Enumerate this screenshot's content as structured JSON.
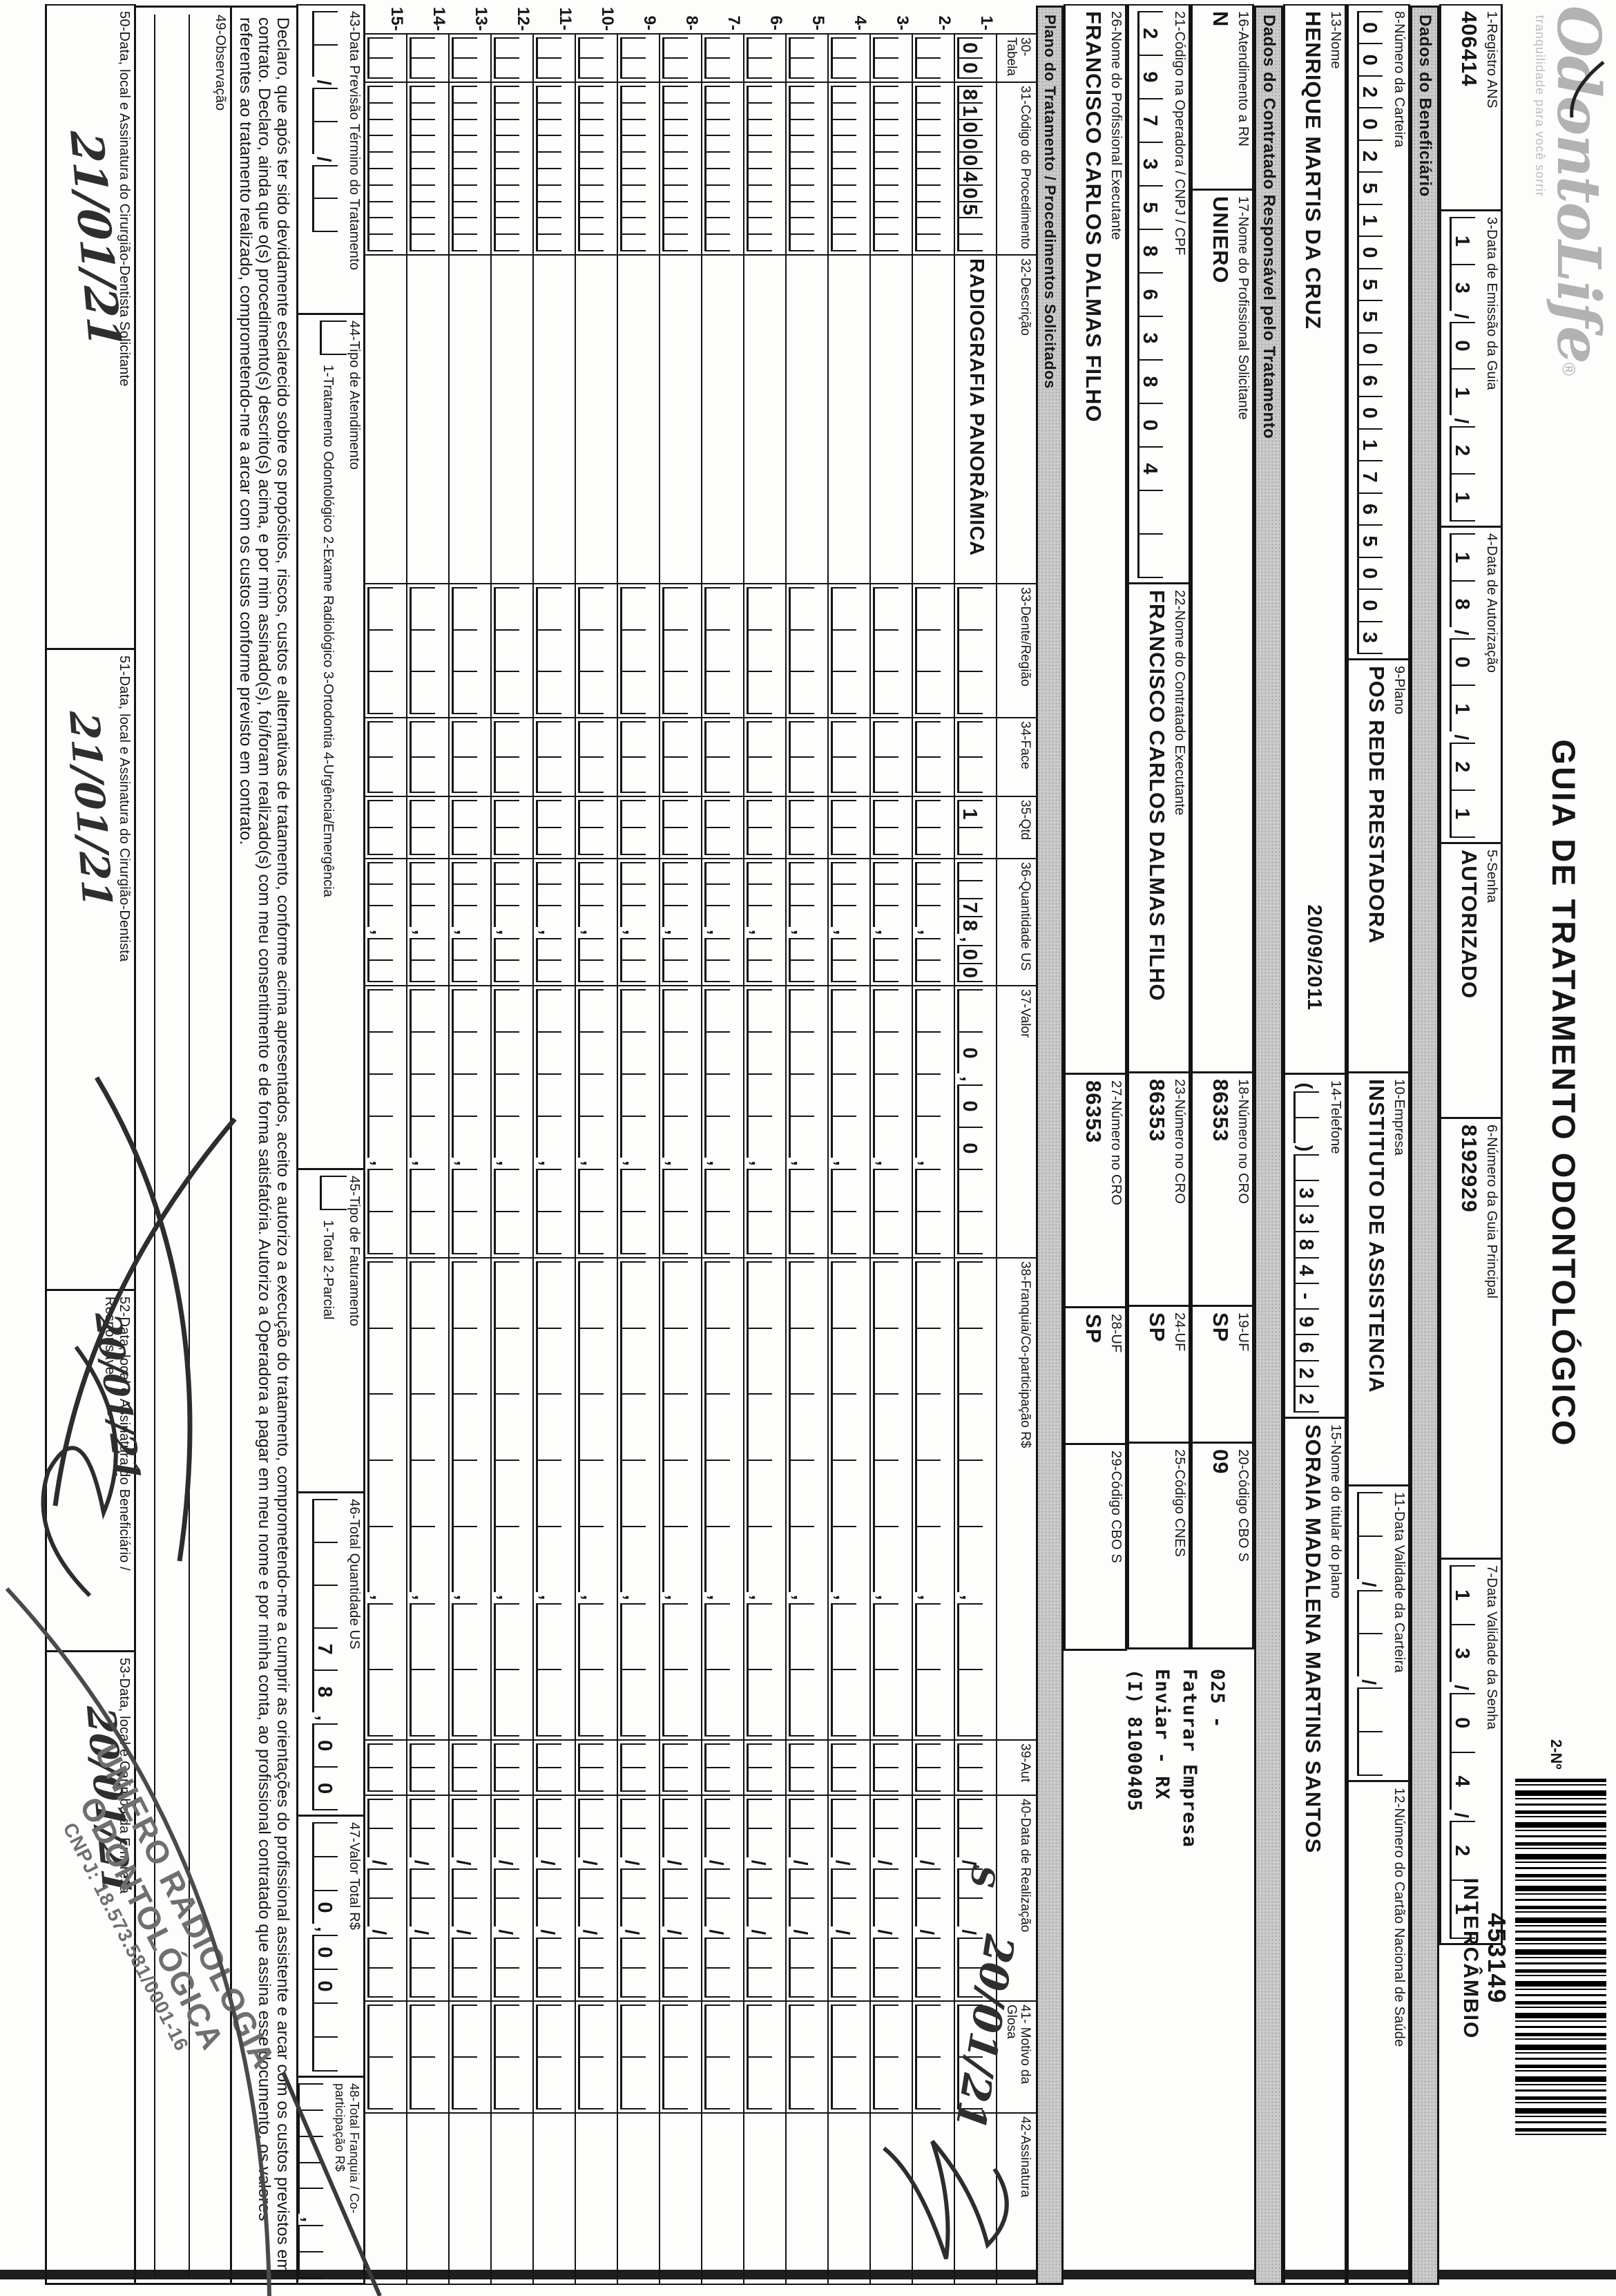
{
  "logo": {
    "name": "OdontoLife",
    "reg": "®",
    "tagline": "tranquilidade para você sorrir"
  },
  "title": "GUIA DE TRATAMENTO ODONTOLÓGICO",
  "header": {
    "f1_label": "1-Registro ANS",
    "f1": "406414",
    "f2_label": "2-Nº",
    "numero": "453149",
    "intercambio": "INTERCÂMBIO",
    "f3_label": "3-Data de Emissão da Guia",
    "f3": "13/01/21",
    "f4_label": "4-Data de Autorização",
    "f4": "18/01/21",
    "f5_label": "5-Senha",
    "f5": "AUTORIZADO",
    "f6_label": "6-Número da Guia Principal",
    "f6": "8192929",
    "f7_label": "7-Data Validade da Senha",
    "f7": "13/04/21"
  },
  "benef": {
    "section": "Dados do Beneficiário",
    "f8_label": "8-Número da Carteira",
    "f8": "00202510550601765003",
    "f9_label": "9-Plano",
    "f9": "POS REDE PRESTADORA",
    "f10_label": "10-Empresa",
    "f10": "INSTITUTO DE ASSISTENCIA",
    "f11_label": "11-Data Validade da Carteira",
    "f11": "  /  /  ",
    "f12_label": "12-Número do Cartão Nacional de Saúde",
    "f12": "",
    "f13_label": "13-Nome",
    "f13": "HENRIQUE MARTIS DA CRUZ",
    "print_date": "20/09/2011",
    "f14_label": "14-Telefone",
    "f14": "(  ) 3384-9622",
    "f15_label": "15-Nome do titular do plano",
    "f15": "SORAIA MADALENA MARTINS SANTOS"
  },
  "contratado": {
    "section": "Dados do Contratado Responsável pelo Tratamento",
    "f16_label": "16-Atendimento a RN",
    "f16": "N",
    "f17_label": "17-Nome do Profissional Solicitante",
    "f17": "UNIERO",
    "f18_label": "18-Número no CRO",
    "f18": "86353",
    "f19_label": "19-UF",
    "f19": "SP",
    "f20_label": "20-Código CBO S",
    "f20": "09",
    "f21_label": "21-Código na Operadora / CNPJ / CPF",
    "f21": "29735863804  ",
    "f22_label": "22-Nome do Contratado Executante",
    "f22": "FRANCISCO CARLOS DALMAS FILHO",
    "f23_label": "23-Número no CRO",
    "f23": "86353",
    "f24_label": "24-UF",
    "f24": "SP",
    "f25_label": "25-Código CNES",
    "f25": "    ",
    "f26_label": "26-Nome do Profissional Executante",
    "f26": "FRANCISCO CARLOS DALMAS FILHO",
    "f27_label": "27-Número no CRO",
    "f27": "86353",
    "f28_label": "28-UF",
    "f28": "SP",
    "f29_label": "29-Código CBO S",
    "f29": "    ",
    "nota_l1": "025 -",
    "nota_l2": "Faturar Empresa",
    "nota_l3": "Enviar - RX",
    "nota_l4": "(I) 81000405"
  },
  "table": {
    "section": "Plano do Tratamento / Procedimentos Solicitados",
    "h30": "30-Tabela",
    "h31": "31-Código do Procedimento",
    "h32": "32-Descrição",
    "h33": "33-Dente/Região",
    "h34": "34-Face",
    "h35": "35-Qtd",
    "h36": "36-Quantidade US",
    "h37": "37-Valor",
    "h38": "38-Franquia/Co-participação R$",
    "h39": "39-Aut",
    "h40": "40-Data de Realização",
    "h41": "41- Motivo da Glosa",
    "h42": "42-Assinatura",
    "hand_aut": "S",
    "hand_data": "20/01/21",
    "rows": [
      {
        "n": "1-",
        "tb": "00",
        "cd": "81000405  ",
        "ds": "RADIOGRAFIA PANORÂMICA",
        "dt": "   ",
        "fc": "  ",
        "qt": "1 ",
        "us": "  78,00",
        "vl": " 0,00  ",
        "fr": "     ,  ",
        "au": "  ",
        "dr": "  /  /  ",
        "mg": "  "
      },
      {
        "n": "2-",
        "tb": "  ",
        "cd": "          ",
        "ds": "",
        "dt": "   ",
        "fc": "  ",
        "qt": "  ",
        "us": "   ,  ",
        "vl": "    ,  ",
        "fr": "     ,  ",
        "au": "  ",
        "dr": "  /  /  ",
        "mg": "  "
      },
      {
        "n": "3-",
        "tb": "  ",
        "cd": "          ",
        "ds": "",
        "dt": "   ",
        "fc": "  ",
        "qt": "  ",
        "us": "   ,  ",
        "vl": "    ,  ",
        "fr": "     ,  ",
        "au": "  ",
        "dr": "  /  /  ",
        "mg": "  "
      },
      {
        "n": "4-",
        "tb": "  ",
        "cd": "          ",
        "ds": "",
        "dt": "   ",
        "fc": "  ",
        "qt": "  ",
        "us": "   ,  ",
        "vl": "    ,  ",
        "fr": "     ,  ",
        "au": "  ",
        "dr": "  /  /  ",
        "mg": "  "
      },
      {
        "n": "5-",
        "tb": "  ",
        "cd": "          ",
        "ds": "",
        "dt": "   ",
        "fc": "  ",
        "qt": "  ",
        "us": "   ,  ",
        "vl": "    ,  ",
        "fr": "     ,  ",
        "au": "  ",
        "dr": "  /  /  ",
        "mg": "  "
      },
      {
        "n": "6-",
        "tb": "  ",
        "cd": "          ",
        "ds": "",
        "dt": "   ",
        "fc": "  ",
        "qt": "  ",
        "us": "   ,  ",
        "vl": "    ,  ",
        "fr": "     ,  ",
        "au": "  ",
        "dr": "  /  /  ",
        "mg": "  "
      },
      {
        "n": "7-",
        "tb": "  ",
        "cd": "          ",
        "ds": "",
        "dt": "   ",
        "fc": "  ",
        "qt": "  ",
        "us": "   ,  ",
        "vl": "    ,  ",
        "fr": "     ,  ",
        "au": "  ",
        "dr": "  /  /  ",
        "mg": "  "
      },
      {
        "n": "8-",
        "tb": "  ",
        "cd": "          ",
        "ds": "",
        "dt": "   ",
        "fc": "  ",
        "qt": "  ",
        "us": "   ,  ",
        "vl": "    ,  ",
        "fr": "     ,  ",
        "au": "  ",
        "dr": "  /  /  ",
        "mg": "  "
      },
      {
        "n": "9-",
        "tb": "  ",
        "cd": "          ",
        "ds": "",
        "dt": "   ",
        "fc": "  ",
        "qt": "  ",
        "us": "   ,  ",
        "vl": "    ,  ",
        "fr": "     ,  ",
        "au": "  ",
        "dr": "  /  /  ",
        "mg": "  "
      },
      {
        "n": "10-",
        "tb": "  ",
        "cd": "          ",
        "ds": "",
        "dt": "   ",
        "fc": "  ",
        "qt": "  ",
        "us": "   ,  ",
        "vl": "    ,  ",
        "fr": "     ,  ",
        "au": "  ",
        "dr": "  /  /  ",
        "mg": "  "
      },
      {
        "n": "11-",
        "tb": "  ",
        "cd": "          ",
        "ds": "",
        "dt": "   ",
        "fc": "  ",
        "qt": "  ",
        "us": "   ,  ",
        "vl": "    ,  ",
        "fr": "     ,  ",
        "au": "  ",
        "dr": "  /  /  ",
        "mg": "  "
      },
      {
        "n": "12-",
        "tb": "  ",
        "cd": "          ",
        "ds": "",
        "dt": "   ",
        "fc": "  ",
        "qt": "  ",
        "us": "   ,  ",
        "vl": "    ,  ",
        "fr": "     ,  ",
        "au": "  ",
        "dr": "  /  /  ",
        "mg": "  "
      },
      {
        "n": "13-",
        "tb": "  ",
        "cd": "          ",
        "ds": "",
        "dt": "   ",
        "fc": "  ",
        "qt": "  ",
        "us": "   ,  ",
        "vl": "    ,  ",
        "fr": "     ,  ",
        "au": "  ",
        "dr": "  /  /  ",
        "mg": "  "
      },
      {
        "n": "14-",
        "tb": "  ",
        "cd": "          ",
        "ds": "",
        "dt": "   ",
        "fc": "  ",
        "qt": "  ",
        "us": "   ,  ",
        "vl": "    ,  ",
        "fr": "     ,  ",
        "au": "  ",
        "dr": "  /  /  ",
        "mg": "  "
      },
      {
        "n": "15-",
        "tb": "  ",
        "cd": "          ",
        "ds": "",
        "dt": "   ",
        "fc": "  ",
        "qt": "  ",
        "us": "   ,  ",
        "vl": "    ,  ",
        "fr": "     ,  ",
        "au": "  ",
        "dr": "  /  /  ",
        "mg": "  "
      }
    ]
  },
  "bottom": {
    "f43_label": "43-Data Previsão Término do Tratamento",
    "f43": "  /  /  ",
    "f44_label": "44-Tipo de Atendimento",
    "f44_opts": "1-Tratamento Odontológico  2-Exame Radiológico  3-Ortodontia  4-Urgência/Emergência",
    "f45_label": "45-Tipo de Faturamento",
    "f45_opts": "1-Total  2-Parcial",
    "f46_label": "46-Total Quantidade US",
    "f46": "   78,00",
    "f47_label": "47-Valor Total R$",
    "f47": "  0,00  ",
    "f48_label": "48-Total Franquia / Co-participação R$",
    "f48": "     ,  ",
    "decl_l1": "Declaro, que após ter sido devidamente esclarecido sobre os propósitos, riscos, custos e alternativas de tratamento, conforme acima apresentados, aceito e autorizo a execução do tratamento, comprometendo-me a cumprir as orientações do profissional assistente e arcar com os custos previstos em",
    "decl_l2": "contrato. Declaro, ainda que o(s) procedimento(s) descrito(s) acima, e por mim assinado(s), foi/foram realizado(s) com meu consentimento e de forma satisfatória. Autorizo a Operadora a pagar em meu nome e por minha conta, ao profissional contratado que assina esse documento, os valores",
    "decl_l3": "referentes ao tratamento realizado, comprometendo-me a arcar com os custos conforme previsto em contrato.",
    "f49_label": "49-Observação",
    "f50_label": "50-Data, local e Assinatura do Cirurgião-Dentista Solicitante",
    "hand50": "21/01/21",
    "f51_label": "51-Data, local e Assinatura do Cirurgião-Dentista",
    "hand51": "21/01/21",
    "f52_label": "52-Data, local e Assinatura do Beneficiário / Responsável",
    "hand52": "20/01/21",
    "f53_label": "53-Data, local e Carimbo da Empresa",
    "hand53": "20/01/21"
  },
  "stamp": {
    "l1": "UNIERO RADIOLOGIA",
    "l2": "ODONTOLÓGICA",
    "l3": "CNPJ: 18.573.581/0001-16"
  }
}
